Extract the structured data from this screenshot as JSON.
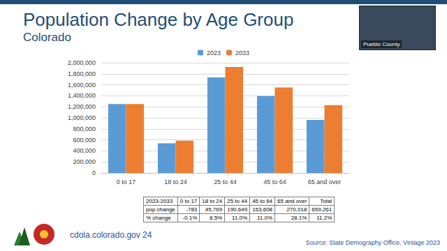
{
  "chart_data": {
    "type": "bar",
    "title": "Population Change by Age Group",
    "subtitle": "Colorado",
    "categories": [
      "0 to 17",
      "18 to 24",
      "25 to 44",
      "45 to 64",
      "65 and over"
    ],
    "series": [
      {
        "name": "2023",
        "color": "#5b9bd5",
        "values": [
          1250000,
          538000,
          1733000,
          1396000,
          961000
        ]
      },
      {
        "name": "2033",
        "color": "#ed7d31",
        "values": [
          1249000,
          584000,
          1924000,
          1550000,
          1231000
        ]
      }
    ],
    "ylim": [
      0,
      2000000
    ],
    "yticks": [
      0,
      {
        "value": 200000,
        "label": "200,000"
      },
      {
        "value": 400000,
        "label": "400,000"
      },
      {
        "value": 600000,
        "label": "600,000"
      },
      {
        "value": 800000,
        "label": "800,000"
      },
      {
        "value": 1000000,
        "label": "1,000,000"
      },
      {
        "value": 1200000,
        "label": "1,200,000"
      },
      {
        "value": 1400000,
        "label": "1,400,000"
      },
      {
        "value": 1600000,
        "label": "1,600,000"
      },
      {
        "value": 1800000,
        "label": "1,800,000"
      },
      {
        "value": 2000000,
        "label": "2,000,000"
      }
    ],
    "grid": true,
    "legend": "top"
  },
  "table": {
    "header": [
      "2023-2033",
      "0 to 17",
      "18 to 24",
      "25 to 44",
      "45 to 64",
      "65 and over",
      "Total"
    ],
    "rows": [
      [
        "pop change",
        "-783",
        "45,769",
        "190,649",
        "153,608",
        "270,018",
        "659,261"
      ],
      [
        "% change",
        "-0.1%",
        "8.5%",
        "11.0%",
        "11.0%",
        "28.1%",
        "11.2%"
      ]
    ]
  },
  "footer": {
    "website": "cdola.colorado.gov 24",
    "source": "Source: State Demography Office, Vintage 2023"
  },
  "webcam_label": "Pueblo County"
}
